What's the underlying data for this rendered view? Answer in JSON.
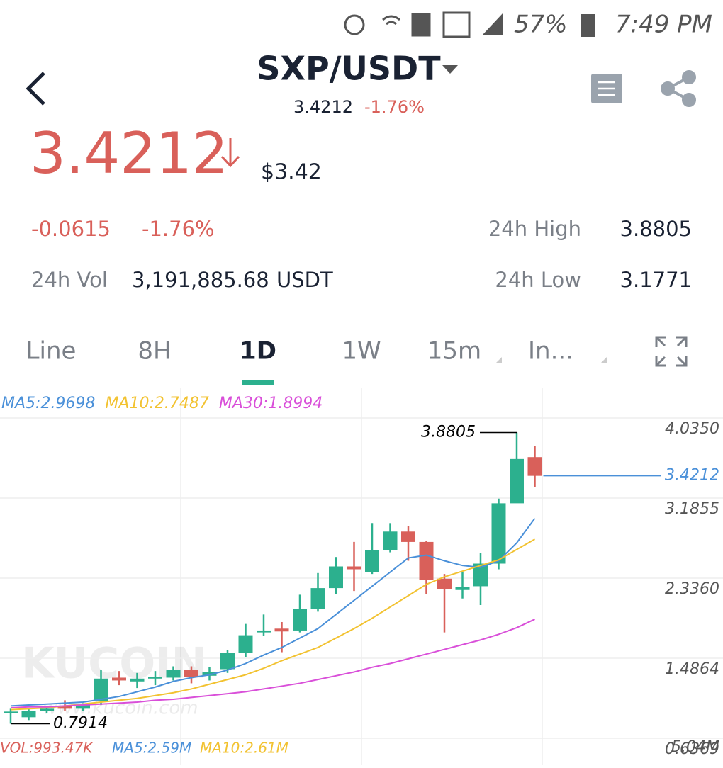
{
  "status_bar": {
    "battery": "57%",
    "time": "7:49 PM"
  },
  "header": {
    "pair": "SXP/USDT",
    "price": "3.4212",
    "change": "-1.76%"
  },
  "price": {
    "last": "3.4212",
    "fiat": "$3.42"
  },
  "stats": {
    "change_abs": "-0.0615",
    "change_pct": "-1.76%",
    "high_label": "24h High",
    "high": "3.8805",
    "vol_label": "24h Vol",
    "vol": "3,191,885.68",
    "vol_unit": "USDT",
    "low_label": "24h Low",
    "low": "3.1771"
  },
  "tabs": {
    "items": [
      "Line",
      "8H",
      "1D",
      "1W",
      "15m",
      "In..."
    ],
    "active": 2
  },
  "chart_data": {
    "type": "candlestick",
    "candles": {
      "open": [
        0.91,
        0.86,
        0.93,
        0.98,
        0.95,
        1.03,
        1.28,
        1.24,
        1.27,
        1.28,
        1.36,
        1.3,
        1.37,
        1.54,
        1.76,
        1.8,
        1.78,
        2.01,
        2.23,
        2.46,
        2.4,
        2.63,
        2.83,
        2.72,
        2.33,
        2.21,
        2.25,
        2.49,
        3.13,
        3.62
      ],
      "high": [
        0.95,
        0.95,
        0.98,
        1.04,
        1.01,
        1.36,
        1.35,
        1.33,
        1.35,
        1.4,
        1.4,
        1.39,
        1.57,
        1.85,
        1.95,
        1.87,
        2.16,
        2.39,
        2.56,
        2.72,
        2.92,
        2.92,
        2.89,
        2.73,
        2.38,
        2.4,
        2.6,
        3.18,
        3.8805,
        3.74
      ],
      "low": [
        0.7914,
        0.83,
        0.9,
        0.93,
        0.93,
        0.99,
        1.2,
        1.17,
        1.2,
        1.25,
        1.22,
        1.25,
        1.33,
        1.5,
        1.72,
        1.55,
        1.76,
        1.98,
        2.17,
        2.2,
        2.38,
        2.61,
        2.52,
        2.17,
        1.76,
        2.12,
        2.05,
        2.43,
        3.16,
        3.3
      ],
      "close": [
        0.92,
        0.93,
        0.95,
        0.95,
        0.99,
        1.27,
        1.25,
        1.27,
        1.29,
        1.36,
        1.29,
        1.34,
        1.54,
        1.73,
        1.78,
        1.77,
        2.01,
        2.23,
        2.46,
        2.43,
        2.63,
        2.83,
        2.72,
        2.32,
        2.22,
        2.24,
        2.49,
        3.13,
        3.6,
        3.4212
      ]
    },
    "up_color": "#2cb08e",
    "down_color": "#d9605a",
    "series": [
      {
        "name": "MA5:2.9698",
        "color": "#4a90d9",
        "values": [
          0.98,
          0.99,
          1.0,
          1.01,
          1.02,
          1.05,
          1.08,
          1.13,
          1.18,
          1.24,
          1.28,
          1.31,
          1.36,
          1.43,
          1.52,
          1.6,
          1.7,
          1.8,
          1.95,
          2.1,
          2.25,
          2.4,
          2.55,
          2.58,
          2.52,
          2.47,
          2.45,
          2.52,
          2.71,
          2.9698
        ]
      },
      {
        "name": "MA10:2.7487",
        "color": "#f2c230",
        "values": [
          0.94,
          0.95,
          0.96,
          0.98,
          1.0,
          1.02,
          1.04,
          1.06,
          1.09,
          1.12,
          1.16,
          1.21,
          1.26,
          1.31,
          1.38,
          1.46,
          1.53,
          1.6,
          1.7,
          1.8,
          1.91,
          2.03,
          2.15,
          2.27,
          2.35,
          2.41,
          2.47,
          2.53,
          2.64,
          2.7487
        ]
      },
      {
        "name": "MA30:1.8994",
        "color": "#d94fd9",
        "values": [
          0.96,
          0.97,
          0.97,
          0.98,
          0.99,
          1.0,
          1.01,
          1.02,
          1.04,
          1.05,
          1.07,
          1.09,
          1.11,
          1.13,
          1.16,
          1.19,
          1.22,
          1.26,
          1.3,
          1.34,
          1.39,
          1.43,
          1.48,
          1.53,
          1.58,
          1.63,
          1.68,
          1.74,
          1.81,
          1.8994
        ]
      }
    ],
    "ylim": [
      0.6369,
      4.035
    ],
    "yticks": [
      {
        "value": 4.035,
        "label": "4.0350"
      },
      3.1855,
      {
        "value": 2.336,
        "label": "2.3360"
      },
      1.4864,
      0.6369
    ],
    "grid": true,
    "volume": {
      "label": "VOL:993.47K",
      "ma": [
        "MA5:2.59M",
        "MA10:2.61M"
      ],
      "axis_label": "5.04M"
    },
    "watermark": [
      "KUCOIN",
      "www.kucoin.com"
    ]
  }
}
